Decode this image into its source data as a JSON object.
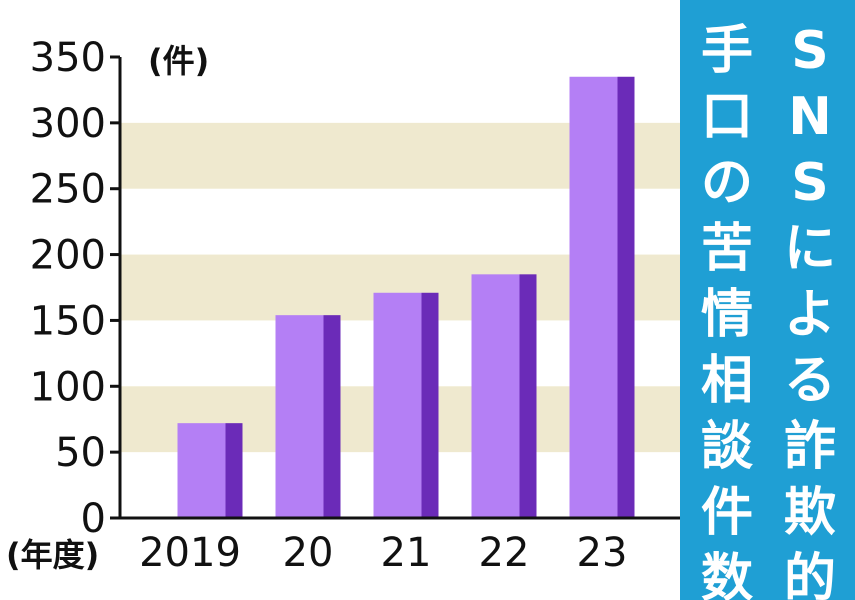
{
  "chart_data": {
    "type": "bar",
    "title": "SNSによる詐欺的手口の苦情相談件数",
    "title_columns": [
      "SNSによる詐欺的",
      "手口の苦情相談件数"
    ],
    "y_unit": "(件)",
    "x_unit": "(年度)",
    "categories": [
      "2019",
      "20",
      "21",
      "22",
      "23"
    ],
    "values": [
      72,
      154,
      171,
      185,
      335
    ],
    "ylim": [
      0,
      350
    ],
    "yticks": [
      0,
      50,
      100,
      150,
      200,
      250,
      300,
      350
    ],
    "grid": "alternating bands",
    "colors": {
      "bar_face": "#b47ff5",
      "bar_side": "#6b2bb8",
      "band": "#efe9cf",
      "title_bg": "#1f9fd4",
      "title_text": "#ffffff"
    }
  }
}
